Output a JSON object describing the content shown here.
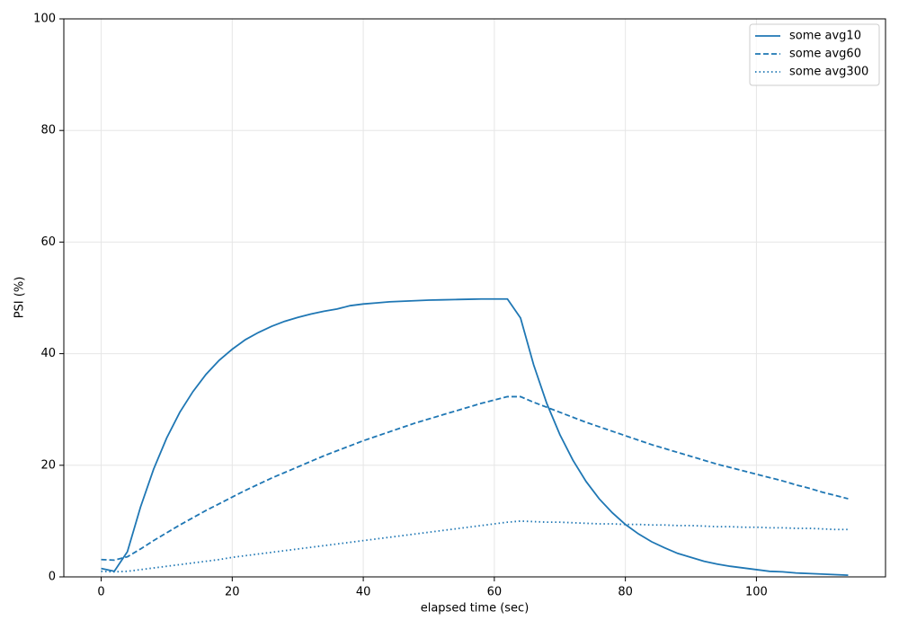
{
  "chart_data": {
    "type": "line",
    "xlabel": "elapsed time (sec)",
    "ylabel": "PSI (%)",
    "x": [
      0,
      2,
      4,
      6,
      8,
      10,
      12,
      14,
      16,
      18,
      20,
      22,
      24,
      26,
      28,
      30,
      32,
      34,
      36,
      38,
      40,
      42,
      44,
      46,
      48,
      50,
      52,
      54,
      56,
      58,
      60,
      62,
      64,
      66,
      68,
      70,
      72,
      74,
      76,
      78,
      80,
      82,
      84,
      86,
      88,
      90,
      92,
      94,
      96,
      98,
      100,
      102,
      104,
      106,
      108,
      110,
      112,
      114
    ],
    "series": [
      {
        "name": "some avg10",
        "color": "#1f77b4",
        "dash": "solid",
        "values": [
          1.5,
          1.0,
          4.5,
          12.5,
          19.3,
          24.9,
          29.5,
          33.2,
          36.3,
          38.8,
          40.8,
          42.5,
          43.8,
          44.9,
          45.8,
          46.5,
          47.1,
          47.6,
          48.0,
          48.6,
          48.9,
          49.1,
          49.3,
          49.4,
          49.5,
          49.6,
          49.65,
          49.7,
          49.75,
          49.8,
          49.8,
          49.8,
          46.4,
          38.0,
          31.1,
          25.5,
          20.9,
          17.1,
          14.0,
          11.5,
          9.4,
          7.7,
          6.3,
          5.2,
          4.2,
          3.5,
          2.8,
          2.3,
          1.9,
          1.6,
          1.3,
          1.0,
          0.9,
          0.7,
          0.6,
          0.5,
          0.4,
          0.3
        ]
      },
      {
        "name": "some avg60",
        "color": "#1f77b4",
        "dash": "dashed",
        "values": [
          3.1,
          3.0,
          3.6,
          5.0,
          6.5,
          7.9,
          9.3,
          10.6,
          11.9,
          13.1,
          14.3,
          15.5,
          16.6,
          17.7,
          18.7,
          19.7,
          20.7,
          21.7,
          22.6,
          23.5,
          24.4,
          25.2,
          26.0,
          26.8,
          27.6,
          28.3,
          29.0,
          29.7,
          30.4,
          31.1,
          31.7,
          32.3,
          32.3,
          31.3,
          30.4,
          29.5,
          28.6,
          27.7,
          26.9,
          26.1,
          25.3,
          24.5,
          23.7,
          23.0,
          22.3,
          21.6,
          20.9,
          20.2,
          19.6,
          19.0,
          18.4,
          17.8,
          17.2,
          16.5,
          15.9,
          15.2,
          14.6,
          14.0
        ]
      },
      {
        "name": "some avg300",
        "color": "#1f77b4",
        "dash": "dotted",
        "values": [
          1.0,
          0.9,
          1.0,
          1.3,
          1.6,
          1.9,
          2.2,
          2.5,
          2.8,
          3.1,
          3.5,
          3.8,
          4.1,
          4.4,
          4.7,
          5.0,
          5.3,
          5.6,
          5.9,
          6.2,
          6.5,
          6.8,
          7.1,
          7.4,
          7.7,
          8.0,
          8.3,
          8.6,
          8.9,
          9.2,
          9.5,
          9.8,
          10.0,
          9.9,
          9.8,
          9.8,
          9.7,
          9.6,
          9.5,
          9.5,
          9.4,
          9.4,
          9.3,
          9.3,
          9.2,
          9.2,
          9.1,
          9.0,
          9.0,
          8.9,
          8.9,
          8.8,
          8.8,
          8.7,
          8.7,
          8.6,
          8.5,
          8.5
        ]
      }
    ],
    "xlim": [
      -5.7,
      119.7
    ],
    "ylim": [
      0,
      100
    ],
    "xticks": [
      0,
      20,
      40,
      60,
      80,
      100
    ],
    "yticks": [
      0,
      20,
      40,
      60,
      80,
      100
    ],
    "grid": true,
    "legend": "upper right"
  }
}
